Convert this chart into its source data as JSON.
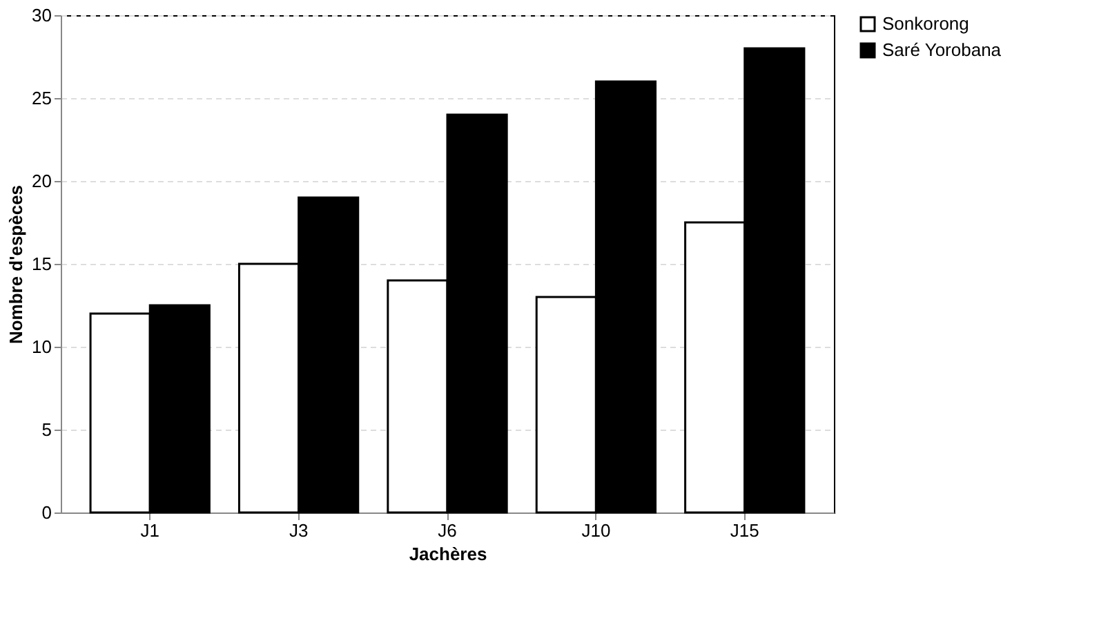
{
  "chart_data": {
    "type": "bar",
    "xlabel": "Jachères",
    "ylabel": "Nombre d'espèces",
    "categories": [
      "J1",
      "J3",
      "J6",
      "J10",
      "J15"
    ],
    "series": [
      {
        "name": "Sonkorong",
        "color": "#ffffff",
        "values": [
          12,
          15,
          14,
          13,
          17.5
        ]
      },
      {
        "name": "Saré Yorobana",
        "color": "#000000",
        "values": [
          12.5,
          19,
          24,
          26,
          28
        ]
      }
    ],
    "ylim": [
      0,
      30
    ],
    "yticks": [
      0,
      5,
      10,
      15,
      20,
      25,
      30
    ],
    "grid": "y",
    "legend": "right"
  }
}
